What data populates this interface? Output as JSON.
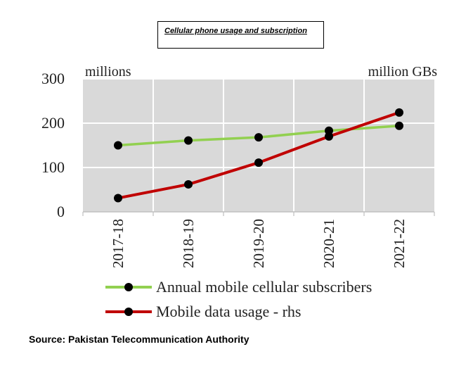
{
  "header": {
    "title": "Cellular phone usage and subscription"
  },
  "source": "Source: Pakistan Telecommunication Authority",
  "chart_data": {
    "type": "line",
    "title": "Cellular phone usage and subscription",
    "left_unit": "millions",
    "right_unit": "million GBs",
    "categories": [
      "2017-18",
      "2018-19",
      "2019-20",
      "2020-21",
      "2021-22"
    ],
    "ylim": [
      0,
      300
    ],
    "yticks": [
      0,
      100,
      200,
      300
    ],
    "grid": true,
    "legend_position": "bottom",
    "series": [
      {
        "name": "Annual mobile cellular subscribers",
        "color": "#92d050",
        "values": [
          150,
          161,
          168,
          183,
          194
        ]
      },
      {
        "name": "Mobile data usage - rhs",
        "color": "#c00000",
        "values": [
          31,
          62,
          111,
          170,
          224
        ]
      }
    ]
  }
}
